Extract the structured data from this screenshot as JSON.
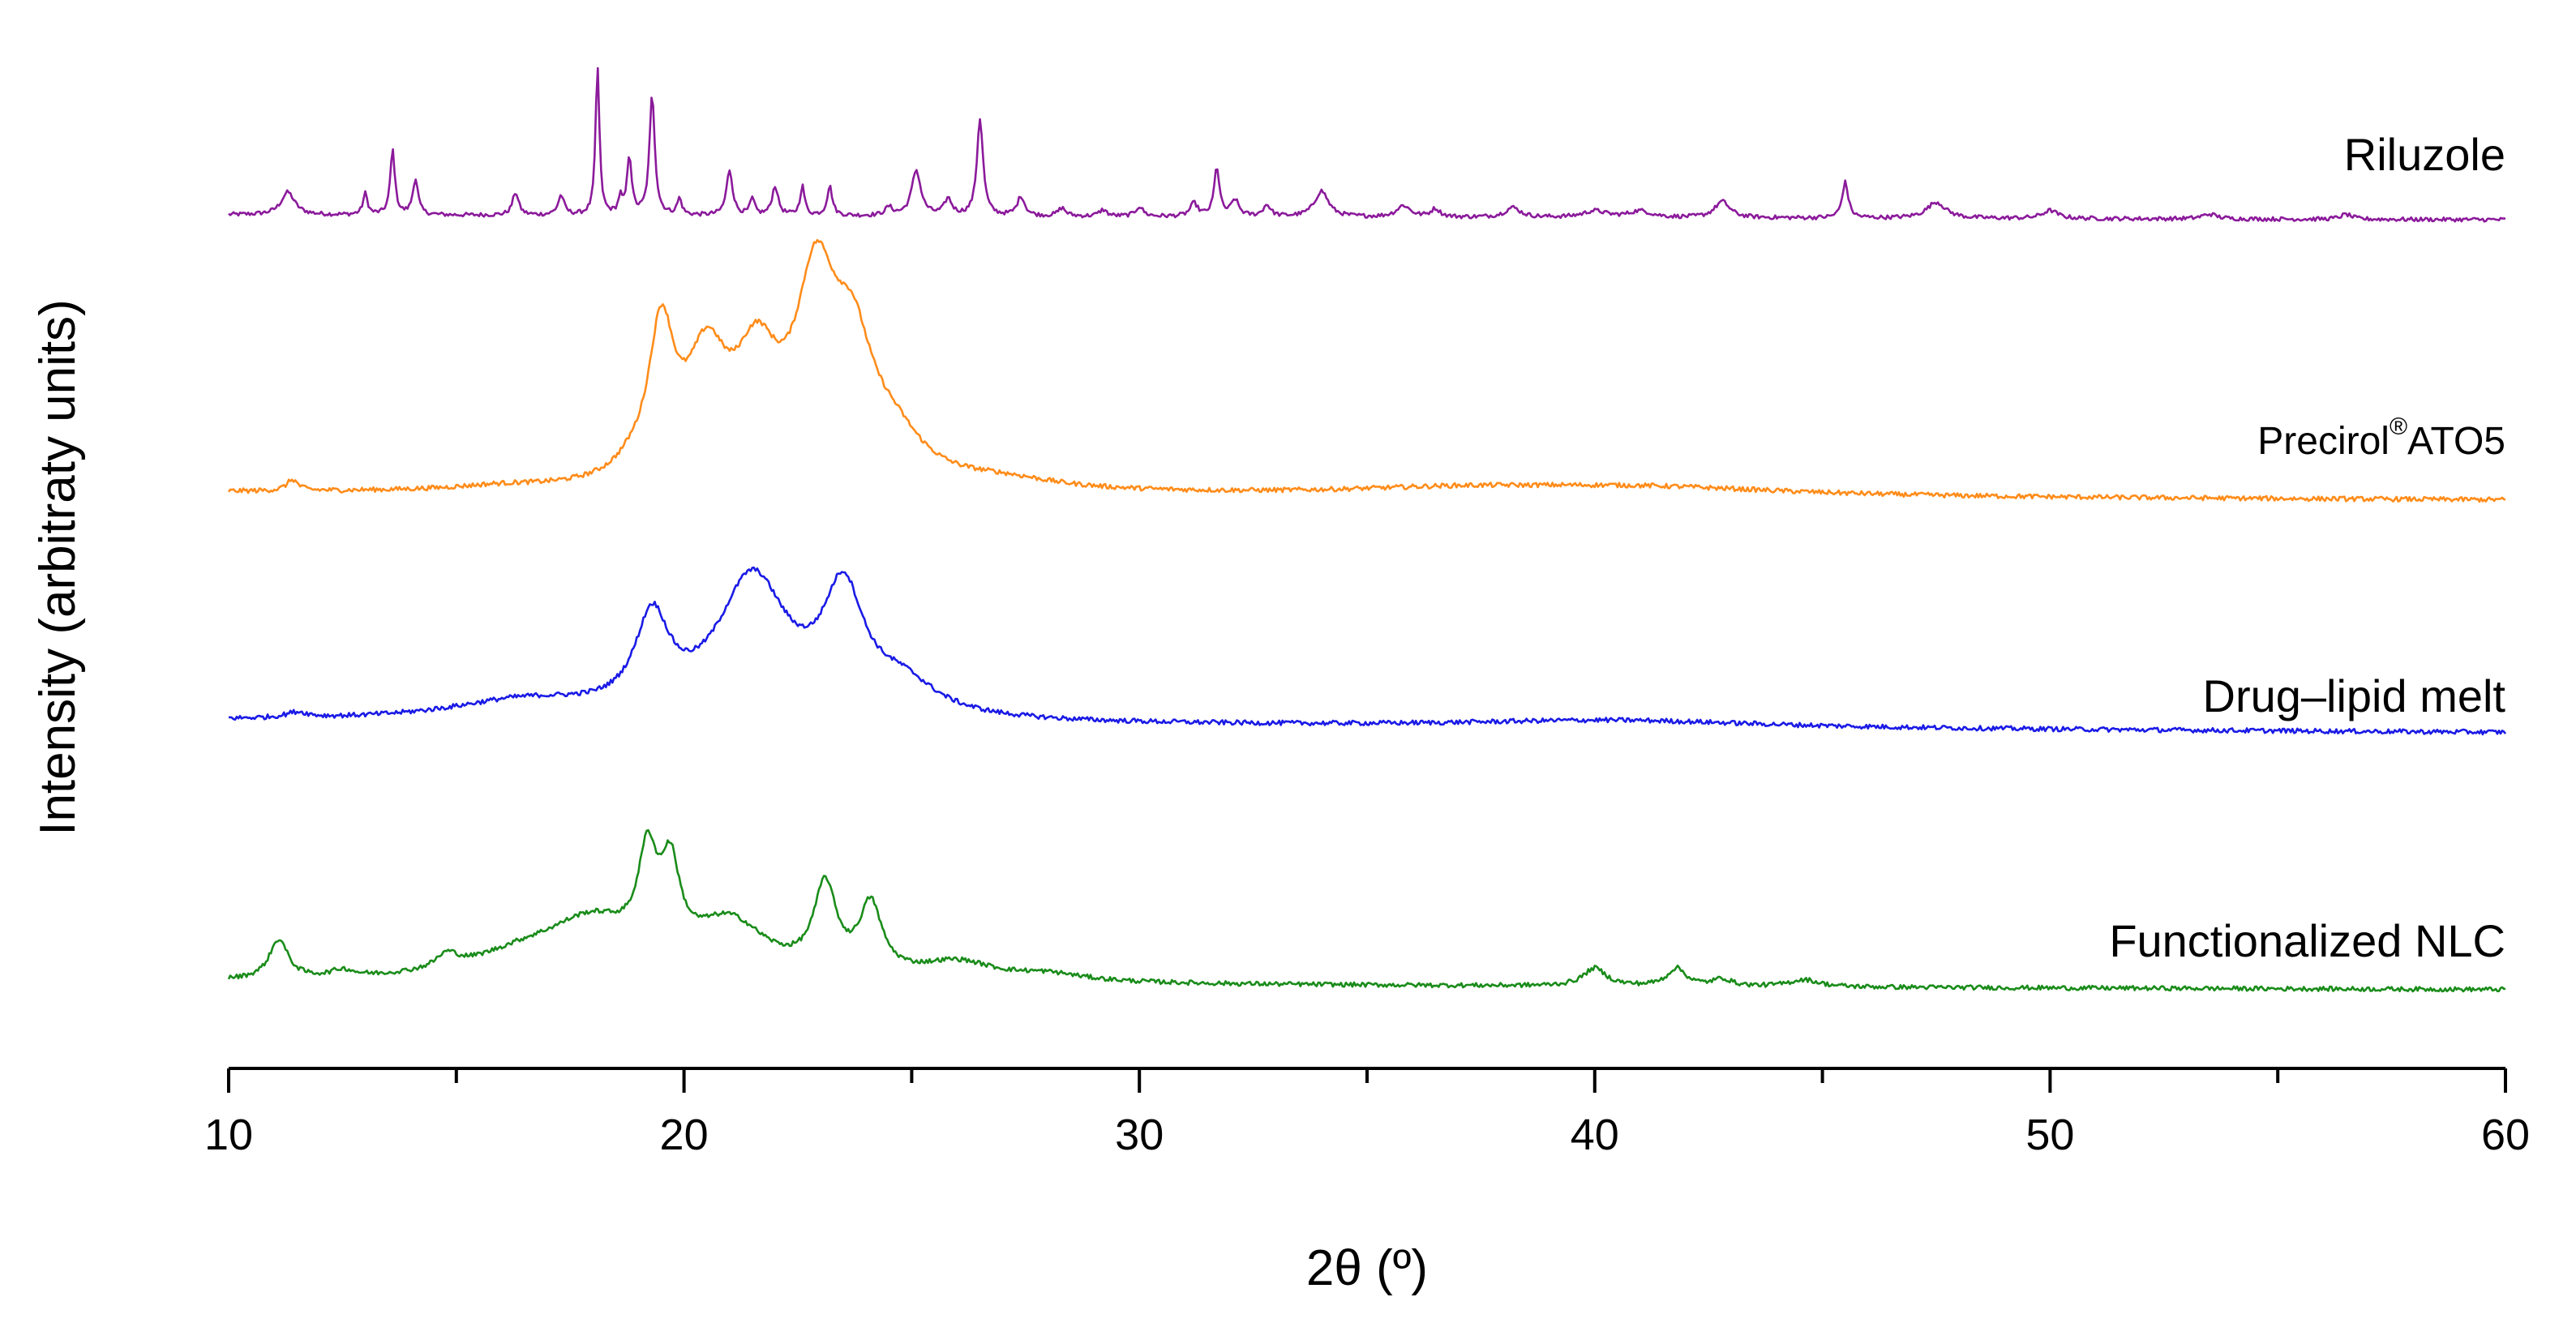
{
  "chart_data": {
    "type": "line",
    "title": "",
    "xlabel": "2θ (º)",
    "ylabel": "Intensity (arbitraty units)",
    "xlim": [
      10,
      60
    ],
    "x_ticks": [
      10,
      20,
      30,
      40,
      50,
      60
    ],
    "x_tick_labels": [
      "10",
      "20",
      "30",
      "40",
      "50",
      "60"
    ],
    "y_ticks_shown": false,
    "grid": false,
    "legend": "labels-on-traces",
    "series": [
      {
        "name": "Riluzole",
        "color": "#8B1A9B",
        "label_parts": [
          "Riluzole"
        ],
        "baseline": [
          [
            10,
            0.0
          ],
          [
            60,
            -0.03
          ]
        ],
        "peaks": [
          [
            11.3,
            0.14,
            0.18
          ],
          [
            13.0,
            0.13,
            0.06
          ],
          [
            13.6,
            0.4,
            0.06
          ],
          [
            14.1,
            0.22,
            0.07
          ],
          [
            16.3,
            0.14,
            0.08
          ],
          [
            17.3,
            0.12,
            0.08
          ],
          [
            18.1,
            0.92,
            0.05
          ],
          [
            18.6,
            0.1,
            0.05
          ],
          [
            18.8,
            0.36,
            0.06
          ],
          [
            19.3,
            0.74,
            0.07
          ],
          [
            19.9,
            0.1,
            0.06
          ],
          [
            21.0,
            0.28,
            0.08
          ],
          [
            21.5,
            0.1,
            0.06
          ],
          [
            22.0,
            0.18,
            0.08
          ],
          [
            22.6,
            0.18,
            0.06
          ],
          [
            23.2,
            0.18,
            0.07
          ],
          [
            24.5,
            0.05,
            0.1
          ],
          [
            25.1,
            0.28,
            0.12
          ],
          [
            25.8,
            0.1,
            0.1
          ],
          [
            26.5,
            0.6,
            0.08
          ],
          [
            27.4,
            0.12,
            0.1
          ],
          [
            28.3,
            0.05,
            0.1
          ],
          [
            29.2,
            0.04,
            0.1
          ],
          [
            30.0,
            0.06,
            0.1
          ],
          [
            31.2,
            0.08,
            0.1
          ],
          [
            31.7,
            0.3,
            0.07
          ],
          [
            32.1,
            0.1,
            0.1
          ],
          [
            32.8,
            0.07,
            0.1
          ],
          [
            34.0,
            0.16,
            0.18
          ],
          [
            35.8,
            0.07,
            0.18
          ],
          [
            36.5,
            0.05,
            0.12
          ],
          [
            38.2,
            0.06,
            0.2
          ],
          [
            40.0,
            0.04,
            0.3
          ],
          [
            41.0,
            0.04,
            0.3
          ],
          [
            42.8,
            0.1,
            0.2
          ],
          [
            45.5,
            0.22,
            0.08
          ],
          [
            47.5,
            0.1,
            0.25
          ],
          [
            50.0,
            0.05,
            0.2
          ],
          [
            53.5,
            0.03,
            0.2
          ],
          [
            56.5,
            0.03,
            0.15
          ]
        ]
      },
      {
        "name": "Precirol®ATO5",
        "color": "#FF8C1A",
        "label_parts": [
          "Precirol",
          "®",
          "ATO5"
        ],
        "baseline": [
          [
            10,
            0.0
          ],
          [
            60,
            -0.04
          ]
        ],
        "peaks": [
          [
            11.4,
            0.06,
            0.15
          ],
          [
            16.0,
            0.02,
            1.2
          ],
          [
            18.8,
            0.04,
            0.4
          ],
          [
            19.5,
            0.78,
            0.35
          ],
          [
            20.5,
            0.6,
            0.55
          ],
          [
            21.6,
            0.58,
            0.6
          ],
          [
            22.9,
            0.98,
            0.55
          ],
          [
            23.7,
            0.6,
            0.55
          ],
          [
            24.6,
            0.2,
            0.8
          ],
          [
            27.0,
            0.05,
            1.5
          ],
          [
            37.0,
            0.03,
            3.0
          ],
          [
            41.0,
            0.05,
            4.0
          ]
        ]
      },
      {
        "name": "Drug–lipid melt",
        "color": "#1A1AE6",
        "label_parts": [
          "Drug–lipid melt"
        ],
        "baseline": [
          [
            10,
            0.0
          ],
          [
            60,
            -0.06
          ]
        ],
        "peaks": [
          [
            11.5,
            0.03,
            0.3
          ],
          [
            16.5,
            0.1,
            2.0
          ],
          [
            19.3,
            0.48,
            0.45
          ],
          [
            21.5,
            0.74,
            0.95
          ],
          [
            23.5,
            0.62,
            0.55
          ],
          [
            24.8,
            0.16,
            0.9
          ],
          [
            40.5,
            0.04,
            4.0
          ]
        ]
      },
      {
        "name": "Functionalized NLC",
        "color": "#1A8C1A",
        "label_parts": [
          "Functionalized NLC"
        ],
        "baseline": [
          [
            10,
            0.0
          ],
          [
            60,
            -0.04
          ]
        ],
        "peaks": [
          [
            11.1,
            0.22,
            0.25
          ],
          [
            12.5,
            0.04,
            0.3
          ],
          [
            14.8,
            0.08,
            0.3
          ],
          [
            16.5,
            0.12,
            1.5
          ],
          [
            18.0,
            0.28,
            1.2
          ],
          [
            19.2,
            0.52,
            0.25
          ],
          [
            19.7,
            0.46,
            0.25
          ],
          [
            21.0,
            0.3,
            1.0
          ],
          [
            23.1,
            0.48,
            0.3
          ],
          [
            24.1,
            0.38,
            0.3
          ],
          [
            26.0,
            0.1,
            1.0
          ],
          [
            28.0,
            0.04,
            1.0
          ],
          [
            40.0,
            0.1,
            0.3
          ],
          [
            41.8,
            0.1,
            0.25
          ],
          [
            42.8,
            0.04,
            0.25
          ],
          [
            44.6,
            0.04,
            0.4
          ]
        ]
      }
    ]
  }
}
